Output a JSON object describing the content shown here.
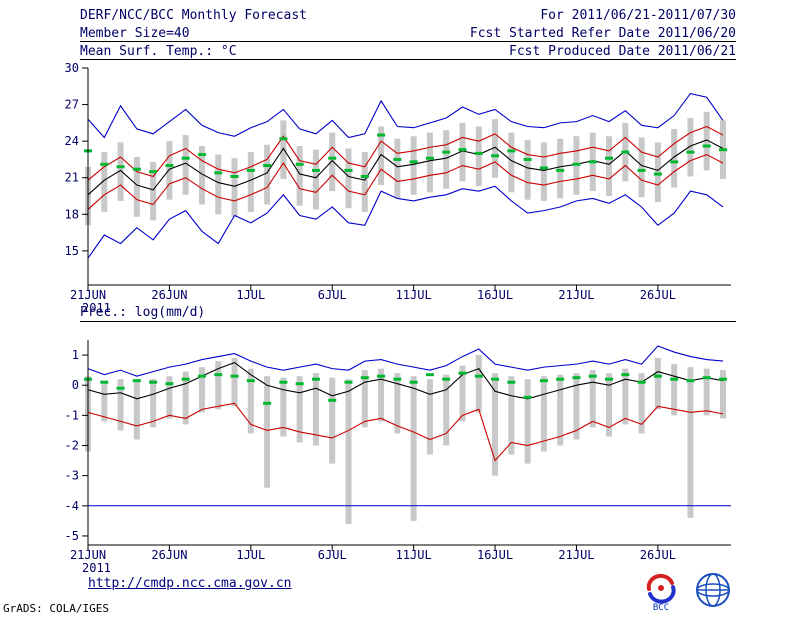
{
  "header": {
    "title": "DERF/NCC/BCC Monthly Forecast",
    "member_size": "Member Size=40",
    "for_range": "For 2011/06/21-2011/07/30",
    "refer_date": "Fcst Started Refer Date 2011/06/20",
    "produced_date": "Fcst Produced Date 2011/06/21"
  },
  "footer": {
    "url": "http://cmdp.ncc.cma.gov.cn",
    "credit": "GrADS: COLA/IGES",
    "bcc_label": "BCC"
  },
  "colors": {
    "max_min_line": "#0000cc",
    "quartile_line": "#cc0000",
    "mean_line": "#000000",
    "observation_marker": "#00b830",
    "spread_bar": "#c8c8c8",
    "text": "#000066"
  },
  "chart_data": [
    {
      "type": "line",
      "title": "Mean Surf. Temp.: °C",
      "xlabel": "",
      "ylabel": "°C",
      "year_label": "2011",
      "x_ticks": [
        "21JUN",
        "26JUN",
        "1JUL",
        "6JUL",
        "11JUL",
        "16JUL",
        "21JUL",
        "26JUL"
      ],
      "x_tick_days": [
        0,
        5,
        10,
        15,
        20,
        25,
        30,
        35
      ],
      "ylim": [
        12.2,
        30
      ],
      "yticks": [
        15,
        18,
        21,
        24,
        27,
        30
      ],
      "series": [
        {
          "name": "ensemble-max",
          "color": "#0000cc",
          "values": [
            25.8,
            24.3,
            26.9,
            25.0,
            24.6,
            25.6,
            26.6,
            25.3,
            24.7,
            24.4,
            25.1,
            25.6,
            26.6,
            25.0,
            24.6,
            25.7,
            24.3,
            24.6,
            27.3,
            25.2,
            25.1,
            25.5,
            25.9,
            26.8,
            26.2,
            26.6,
            25.6,
            25.2,
            25.1,
            25.5,
            25.6,
            26.1,
            25.6,
            26.5,
            25.3,
            25.1,
            26.1,
            27.9,
            27.6,
            25.7
          ]
        },
        {
          "name": "upper-quartile",
          "color": "#cc0000",
          "values": [
            20.8,
            21.9,
            22.7,
            21.5,
            21.1,
            22.8,
            23.4,
            22.4,
            21.7,
            21.4,
            21.9,
            22.5,
            24.4,
            22.4,
            22.1,
            23.5,
            22.2,
            21.9,
            24.0,
            23.0,
            23.2,
            23.5,
            23.7,
            24.3,
            24.0,
            24.6,
            23.5,
            22.9,
            22.7,
            23.0,
            23.2,
            23.5,
            23.2,
            24.3,
            23.1,
            22.7,
            23.8,
            24.7,
            25.2,
            24.5
          ]
        },
        {
          "name": "ensemble-mean",
          "color": "#000000",
          "values": [
            19.6,
            20.8,
            21.6,
            20.4,
            20.0,
            21.7,
            22.2,
            21.3,
            20.6,
            20.3,
            20.8,
            21.4,
            23.4,
            21.3,
            21.0,
            22.4,
            21.1,
            20.8,
            22.9,
            21.9,
            22.1,
            22.4,
            22.6,
            23.2,
            22.9,
            23.5,
            22.4,
            21.8,
            21.6,
            21.9,
            22.1,
            22.4,
            22.1,
            23.2,
            22.0,
            21.6,
            22.7,
            23.6,
            24.1,
            23.4
          ]
        },
        {
          "name": "lower-quartile",
          "color": "#cc0000",
          "values": [
            18.4,
            19.6,
            20.4,
            19.2,
            18.8,
            20.5,
            21.0,
            20.1,
            19.4,
            19.1,
            19.6,
            20.2,
            22.2,
            20.1,
            19.8,
            21.2,
            19.9,
            19.6,
            21.7,
            20.7,
            20.9,
            21.2,
            21.4,
            22.0,
            21.7,
            22.3,
            21.2,
            20.6,
            20.4,
            20.7,
            20.9,
            21.2,
            20.9,
            22.0,
            20.8,
            20.4,
            21.5,
            22.4,
            22.9,
            22.2
          ]
        },
        {
          "name": "ensemble-min",
          "color": "#0000cc",
          "values": [
            14.4,
            16.3,
            15.6,
            16.9,
            15.9,
            17.6,
            18.3,
            16.6,
            15.6,
            17.9,
            17.3,
            18.1,
            19.6,
            17.9,
            17.6,
            18.6,
            17.3,
            17.1,
            19.9,
            19.3,
            19.1,
            19.4,
            19.6,
            20.1,
            19.9,
            20.3,
            19.1,
            18.1,
            18.3,
            18.6,
            19.1,
            19.3,
            18.9,
            19.6,
            18.6,
            17.1,
            18.1,
            19.9,
            19.6,
            18.6
          ]
        }
      ],
      "bars": {
        "name": "ensemble-spread",
        "color": "#c8c8c8",
        "low": [
          17.1,
          18.2,
          19.1,
          17.8,
          17.5,
          19.2,
          19.6,
          18.8,
          18.0,
          17.8,
          18.2,
          18.8,
          20.9,
          18.7,
          18.4,
          19.9,
          18.5,
          18.2,
          20.4,
          19.3,
          19.6,
          19.8,
          20.1,
          20.7,
          20.3,
          21.0,
          19.8,
          19.2,
          19.1,
          19.3,
          19.6,
          19.9,
          19.5,
          20.7,
          19.4,
          19.0,
          20.2,
          21.1,
          21.6,
          20.9
        ],
        "high": [
          21.9,
          23.1,
          23.9,
          22.7,
          22.3,
          24.0,
          24.5,
          23.6,
          22.9,
          22.6,
          23.1,
          23.7,
          25.7,
          23.6,
          23.3,
          24.7,
          23.4,
          23.1,
          25.2,
          24.2,
          24.4,
          24.7,
          24.9,
          25.5,
          25.2,
          25.8,
          24.7,
          24.1,
          23.9,
          24.2,
          24.4,
          24.7,
          24.4,
          25.5,
          24.3,
          23.9,
          25.0,
          25.9,
          26.4,
          25.7
        ]
      },
      "markers": {
        "name": "observation",
        "color": "#00b830",
        "values": [
          23.2,
          22.1,
          21.9,
          21.7,
          21.5,
          22.0,
          22.6,
          22.9,
          21.4,
          21.1,
          21.6,
          22.0,
          24.2,
          22.1,
          21.6,
          22.6,
          21.6,
          21.1,
          24.5,
          22.5,
          22.3,
          22.6,
          23.1,
          23.3,
          23.0,
          22.8,
          23.2,
          22.5,
          21.8,
          21.6,
          22.1,
          22.3,
          22.6,
          23.1,
          21.6,
          21.3,
          22.3,
          23.1,
          23.6,
          23.3
        ]
      }
    },
    {
      "type": "line",
      "title": "Prec.: log(mm/d)",
      "xlabel": "",
      "ylabel": "log(mm/d)",
      "year_label": "2011",
      "x_ticks": [
        "21JUN",
        "26JUN",
        "1JUL",
        "6JUL",
        "11JUL",
        "16JUL",
        "21JUL",
        "26JUL"
      ],
      "x_tick_days": [
        0,
        5,
        10,
        15,
        20,
        25,
        30,
        35
      ],
      "ylim": [
        -5.3,
        1.5
      ],
      "yticks": [
        -5,
        -4,
        -3,
        -2,
        -1,
        0,
        1
      ],
      "hline": {
        "y": -4,
        "color": "#0000cc",
        "name": "ensemble-min-floor"
      },
      "series": [
        {
          "name": "ensemble-max",
          "color": "#0000cc",
          "values": [
            0.55,
            0.35,
            0.5,
            0.3,
            0.45,
            0.6,
            0.7,
            0.85,
            0.95,
            1.05,
            0.8,
            0.6,
            0.5,
            0.6,
            0.7,
            0.55,
            0.5,
            0.8,
            0.85,
            0.7,
            0.6,
            0.5,
            0.65,
            0.95,
            1.2,
            0.7,
            0.6,
            0.5,
            0.6,
            0.65,
            0.7,
            0.8,
            0.7,
            0.85,
            0.7,
            1.3,
            1.1,
            0.95,
            0.85,
            0.8
          ]
        },
        {
          "name": "ensemble-mean",
          "color": "#000000",
          "values": [
            -0.15,
            -0.3,
            -0.25,
            -0.45,
            -0.3,
            -0.1,
            0.05,
            0.3,
            0.55,
            0.75,
            0.35,
            0.0,
            -0.15,
            -0.25,
            -0.1,
            -0.35,
            -0.2,
            0.1,
            0.2,
            0.05,
            -0.1,
            -0.3,
            -0.15,
            0.35,
            0.55,
            -0.2,
            -0.35,
            -0.45,
            -0.3,
            -0.15,
            0.0,
            0.1,
            0.0,
            0.2,
            0.1,
            0.45,
            0.3,
            0.15,
            0.25,
            0.15
          ]
        },
        {
          "name": "lower-quartile",
          "color": "#cc0000",
          "values": [
            -0.9,
            -1.05,
            -1.2,
            -1.35,
            -1.2,
            -1.0,
            -1.1,
            -0.8,
            -0.7,
            -0.6,
            -1.3,
            -1.5,
            -1.4,
            -1.55,
            -1.65,
            -1.75,
            -1.5,
            -1.2,
            -1.1,
            -1.35,
            -1.55,
            -1.8,
            -1.6,
            -1.0,
            -0.8,
            -2.5,
            -1.9,
            -2.0,
            -1.85,
            -1.7,
            -1.5,
            -1.2,
            -1.4,
            -1.1,
            -1.3,
            -0.7,
            -0.8,
            -0.9,
            -0.85,
            -0.95
          ]
        }
      ],
      "bars": {
        "name": "ensemble-spread",
        "color": "#c8c8c8",
        "low": [
          -2.2,
          -1.2,
          -1.5,
          -1.8,
          -1.4,
          -1.1,
          -1.3,
          -0.9,
          -0.8,
          -0.7,
          -1.6,
          -3.4,
          -1.7,
          -1.9,
          -2.0,
          -2.6,
          -4.6,
          -1.4,
          -1.2,
          -1.6,
          -4.5,
          -2.3,
          -2.0,
          -1.2,
          -0.9,
          -3.0,
          -2.3,
          -2.6,
          -2.2,
          -2.0,
          -1.8,
          -1.4,
          -1.7,
          -1.3,
          -1.6,
          -0.8,
          -1.0,
          -4.4,
          -1.0,
          -1.1
        ],
        "high": [
          0.3,
          0.15,
          0.2,
          0.1,
          0.2,
          0.3,
          0.45,
          0.6,
          0.8,
          0.9,
          0.55,
          0.3,
          0.25,
          0.3,
          0.4,
          0.25,
          0.2,
          0.5,
          0.55,
          0.4,
          0.3,
          0.2,
          0.35,
          0.65,
          1.0,
          0.4,
          0.3,
          0.2,
          0.3,
          0.35,
          0.4,
          0.5,
          0.4,
          0.55,
          0.4,
          0.9,
          0.7,
          0.6,
          0.55,
          0.5
        ]
      },
      "markers": {
        "name": "observation",
        "color": "#00b830",
        "values": [
          0.2,
          0.1,
          -0.1,
          0.15,
          0.1,
          0.05,
          0.2,
          0.3,
          0.35,
          0.3,
          0.15,
          -0.6,
          0.1,
          0.05,
          0.2,
          -0.5,
          0.1,
          0.25,
          0.3,
          0.2,
          0.1,
          0.35,
          0.2,
          0.4,
          0.3,
          0.2,
          0.1,
          -0.4,
          0.15,
          0.2,
          0.25,
          0.3,
          0.2,
          0.35,
          0.1,
          0.3,
          0.2,
          0.15,
          0.25,
          0.2
        ]
      }
    }
  ]
}
